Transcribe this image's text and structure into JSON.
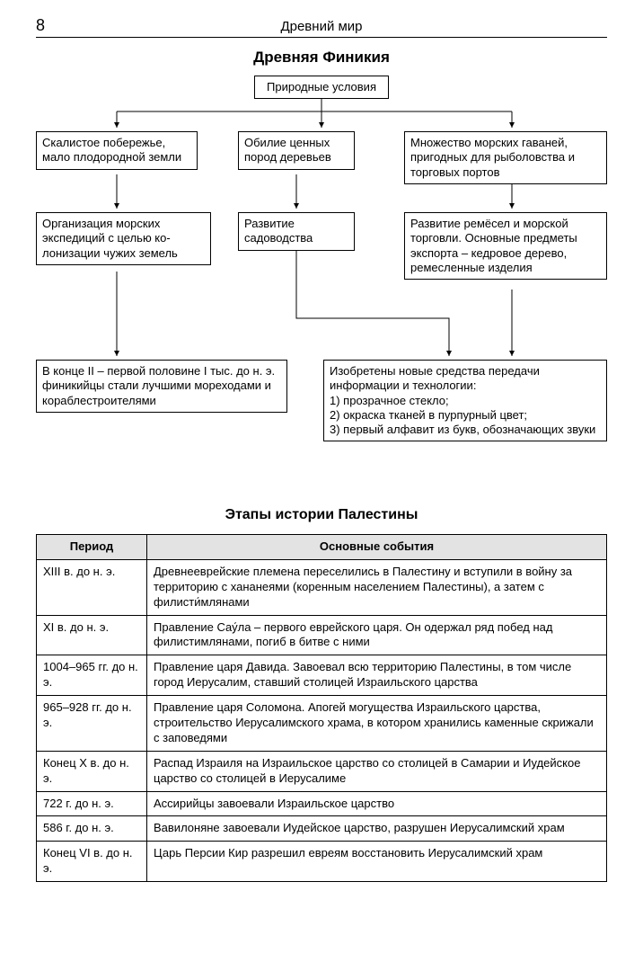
{
  "page_number": "8",
  "header_title": "Древний мир",
  "diagram": {
    "title": "Древняя Финикия",
    "root": "Природные условия",
    "row1": {
      "a": "Скалистое побережье, мало плодородной земли",
      "b": "Обилие ценных пород деревьев",
      "c": "Множество морских гаваней, пригодных для рыболовства и торговых портов"
    },
    "row2": {
      "a": "Организация морских экспедиций с целью ко­лонизации чужих земель",
      "b": "Развитие садоводства",
      "c": "Развитие ремёсел и морской торговли. Основные предме­ты экспорта – кедровое де­рево, ремесленные изделия"
    },
    "row3": {
      "a": "В конце II – первой половине I тыс. до н. э. финикийцы стали лучшими мореходами и кораблестроителями",
      "b": "Изобретены новые средства передачи информации и технологии:\n1) прозрачное стекло;\n2) окраска тканей в пурпурный цвет;\n3) первый алфавит из букв, обозна­чающих звуки"
    }
  },
  "table": {
    "title": "Этапы истории Палестины",
    "columns": [
      "Период",
      "Основные события"
    ],
    "rows": [
      [
        "XIII в. до н. э.",
        "Древнееврейские племена переселились в Палестину и вступи­ли в войну за территорию с хананеями (коренным населением Палестины), а затем с филисти́млянами"
      ],
      [
        "XI в. до н. э.",
        "Правление Сау́ла – первого еврейского царя. Он одержал ряд побед над филистимлянами, погиб в битве с ними"
      ],
      [
        "1004–965 гг. до н. э.",
        "Правление царя Давида. Завоевал всю территорию Палестины, в том числе город Иерусалим, ставший столицей Израильского царства"
      ],
      [
        "965–928 гг. до н. э.",
        "Правление царя Соломона. Апогей могущества Израильского царства, строительство Иерусалимского храма, в котором хранились каменные скрижали с заповедями"
      ],
      [
        "Конец X в. до н. э.",
        "Распад Израиля на Израильское царство со столицей в Сама­рии и Иудейское царство со столицей в Иерусалиме"
      ],
      [
        "722 г. до н. э.",
        "Ассирийцы завоевали Израильское царство"
      ],
      [
        "586 г. до н. э.",
        "Вавилоняне завоевали Иудейское царство, разрушен Иеруса­лимский храм"
      ],
      [
        "Конец VI в. до н. э.",
        "Царь Персии Кир разрешил евреям восстановить Иерусалим­ский храм"
      ]
    ]
  },
  "style": {
    "border_color": "#000000",
    "header_bg": "#e3e3e3",
    "font_body": 13,
    "font_title": 17
  }
}
